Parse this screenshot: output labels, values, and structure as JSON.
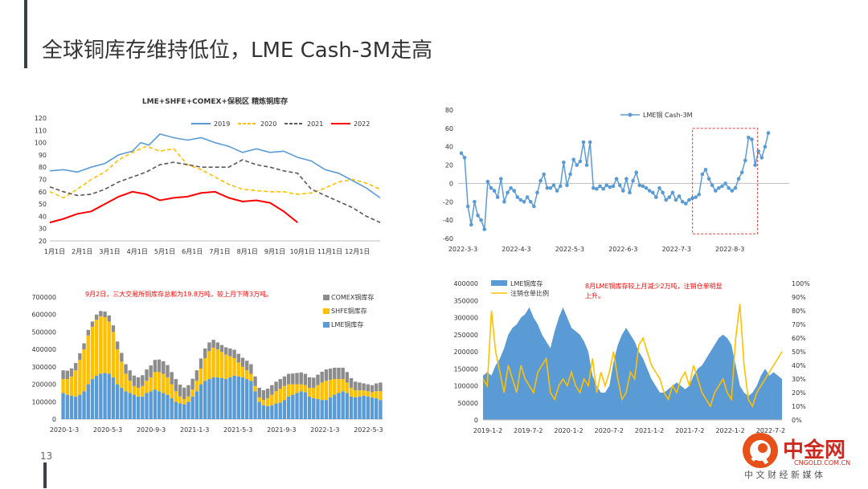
{
  "page": {
    "title": "全球铜库存维持低位，LME Cash-3M走高",
    "page_number": "13"
  },
  "watermark": {
    "name": "中金网",
    "url": "CNGOLD.COM.CN",
    "slogan": "中 文 财 经 新 媒 体"
  },
  "chart_data": [
    {
      "id": "c1",
      "type": "line",
      "title": "LME+SHFE+COMEX+保税区 精炼铜库存",
      "categories": [
        "1月1日",
        "2月1日",
        "3月1日",
        "4月1日",
        "5月1日",
        "6月1日",
        "7月1日",
        "8月1日",
        "9月1日",
        "10月1日",
        "11月1日",
        "12月1日"
      ],
      "ylim": [
        20,
        120
      ],
      "yticks": [
        20,
        30,
        40,
        50,
        60,
        70,
        80,
        90,
        100,
        110,
        120
      ],
      "legend_position": "top",
      "series": [
        {
          "name": "2019",
          "color": "#5b9bd5",
          "style": "solid",
          "x": [
            0,
            0.5,
            1,
            1.5,
            2,
            2.5,
            3,
            3.3,
            3.6,
            4,
            4.5,
            5,
            5.5,
            6,
            6.5,
            7,
            7.5,
            8,
            8.5,
            9,
            9.5,
            10,
            10.5,
            11,
            11.5,
            12
          ],
          "values": [
            77,
            78,
            76,
            80,
            83,
            90,
            93,
            100,
            98,
            107,
            104,
            102,
            104,
            100,
            97,
            92,
            95,
            92,
            93,
            88,
            85,
            78,
            75,
            69,
            63,
            55
          ]
        },
        {
          "name": "2020",
          "color": "#ffc000",
          "style": "dash",
          "x": [
            0,
            0.5,
            1,
            1.5,
            2,
            2.5,
            3,
            3.5,
            4,
            4.5,
            5,
            5.5,
            6,
            6.5,
            7,
            7.5,
            8,
            8.5,
            9,
            9.5,
            10,
            10.5,
            11,
            11.5,
            12
          ],
          "values": [
            60,
            55,
            62,
            70,
            76,
            86,
            92,
            97,
            93,
            95,
            82,
            78,
            72,
            66,
            62,
            61,
            60,
            60,
            58,
            59,
            63,
            68,
            70,
            67,
            62
          ]
        },
        {
          "name": "2021",
          "color": "#595959",
          "style": "dash",
          "x": [
            0,
            0.5,
            1,
            1.5,
            2,
            2.5,
            3,
            3.5,
            4,
            4.5,
            5,
            5.5,
            6,
            6.5,
            7,
            7.5,
            8,
            8.5,
            9,
            9.5,
            10,
            10.5,
            11,
            11.5,
            12
          ],
          "values": [
            64,
            60,
            57,
            58,
            62,
            68,
            72,
            76,
            82,
            84,
            82,
            80,
            80,
            80,
            86,
            82,
            80,
            77,
            75,
            62,
            57,
            52,
            47,
            40,
            35
          ]
        },
        {
          "name": "2022",
          "color": "#ff0000",
          "style": "solid",
          "x": [
            0,
            0.5,
            1,
            1.5,
            2,
            2.5,
            3,
            3.5,
            4,
            4.5,
            5,
            5.5,
            6,
            6.5,
            7,
            7.5,
            8,
            8.5,
            9
          ],
          "values": [
            35,
            38,
            42,
            44,
            50,
            56,
            60,
            58,
            53,
            55,
            56,
            59,
            60,
            55,
            52,
            53,
            51,
            44,
            35
          ]
        }
      ]
    },
    {
      "id": "c2",
      "type": "line",
      "x_ticks": [
        "2022-3-3",
        "2022-4-3",
        "2022-5-3",
        "2022-6-3",
        "2022-7-3",
        "2022-8-3"
      ],
      "ylim": [
        -60,
        80
      ],
      "yticks": [
        -60,
        -40,
        -20,
        0,
        20,
        40,
        60,
        80
      ],
      "series": [
        {
          "name": "LME铜 Cash-3M",
          "color": "#5b9bd5",
          "values": [
            33,
            28,
            -25,
            -45,
            -20,
            -35,
            -40,
            -50,
            2,
            -5,
            -8,
            -15,
            5,
            -20,
            -10,
            -5,
            -8,
            -15,
            -18,
            -20,
            -15,
            -20,
            -25,
            -10,
            3,
            10,
            -5,
            -5,
            -2,
            -8,
            -3,
            23,
            -2,
            10,
            26,
            20,
            24,
            45,
            20,
            45,
            -5,
            -6,
            -3,
            -6,
            -2,
            -4,
            -3,
            5,
            -2,
            -8,
            5,
            -10,
            3,
            12,
            -2,
            -3,
            -5,
            -8,
            -10,
            -15,
            -5,
            -10,
            -18,
            -15,
            -10,
            -18,
            -14,
            -20,
            -22,
            -18,
            -16,
            -15,
            -12,
            10,
            15,
            5,
            -2,
            -8,
            -5,
            -3,
            0,
            -5,
            -8,
            -5,
            5,
            12,
            25,
            50,
            48,
            20,
            35,
            28,
            40,
            55
          ]
        }
      ],
      "annotation": "dashed red box highlighting Aug-Sep 2022"
    },
    {
      "id": "c3",
      "type": "bar",
      "stacked": true,
      "annotation_text": "9月2日，三大交易所铜库存总和为19.8万吨，较上月下降3万吨。",
      "x_ticks": [
        "2020-1-3",
        "2020-5-3",
        "2020-9-3",
        "2021-1-3",
        "2021-5-3",
        "2021-9-3",
        "2022-1-3",
        "2022-5-3"
      ],
      "ylim": [
        0,
        700000
      ],
      "yticks": [
        0,
        100000,
        200000,
        300000,
        400000,
        500000,
        600000,
        700000
      ],
      "series": [
        {
          "name": "COMEX铜库存",
          "color": "#8c8c8c",
          "values": [
            50000,
            48000,
            46000,
            42000,
            38000,
            35000,
            32000,
            30000,
            30000,
            30000,
            32000,
            35000,
            38000,
            45000,
            50000,
            55000,
            60000,
            60000,
            60000,
            62000,
            65000,
            68000,
            70000,
            72000,
            72000,
            70000,
            70000,
            70000,
            68000,
            66000,
            65000,
            62000,
            60000,
            58000,
            55000,
            50000,
            45000,
            40000,
            40000,
            42000,
            45000,
            48000,
            50000,
            52000,
            55000,
            55000,
            55000,
            55000,
            56000,
            55000,
            55000,
            55000,
            55000,
            55000,
            60000,
            62000,
            65000,
            68000,
            65000,
            60000,
            58000,
            60000,
            62000,
            65000,
            65000,
            65000,
            65000,
            65000,
            60000,
            55000,
            50000,
            45000,
            40000,
            40000,
            40000,
            45000,
            50000
          ]
        },
        {
          "name": "SHFE铜库存",
          "color": "#ffc000",
          "values": [
            80000,
            90000,
            110000,
            150000,
            200000,
            240000,
            280000,
            300000,
            320000,
            330000,
            320000,
            300000,
            260000,
            200000,
            150000,
            100000,
            70000,
            50000,
            50000,
            60000,
            70000,
            80000,
            100000,
            110000,
            110000,
            100000,
            80000,
            60000,
            40000,
            30000,
            30000,
            40000,
            60000,
            90000,
            130000,
            160000,
            170000,
            160000,
            150000,
            140000,
            120000,
            100000,
            80000,
            60000,
            50000,
            40000,
            30000,
            25000,
            30000,
            45000,
            60000,
            70000,
            80000,
            80000,
            70000,
            60000,
            50000,
            40000,
            40000,
            50000,
            60000,
            80000,
            100000,
            110000,
            100000,
            90000,
            80000,
            70000,
            60000,
            50000,
            40000,
            35000,
            30000,
            30000,
            30000,
            40000,
            50000
          ]
        },
        {
          "name": "LME铜库存",
          "color": "#5b9bd5",
          "values": [
            150000,
            140000,
            135000,
            130000,
            140000,
            160000,
            200000,
            230000,
            250000,
            260000,
            265000,
            260000,
            240000,
            200000,
            180000,
            160000,
            150000,
            140000,
            130000,
            130000,
            150000,
            160000,
            170000,
            160000,
            150000,
            140000,
            120000,
            100000,
            90000,
            85000,
            100000,
            130000,
            160000,
            200000,
            220000,
            230000,
            240000,
            240000,
            235000,
            230000,
            240000,
            250000,
            245000,
            240000,
            230000,
            220000,
            160000,
            100000,
            80000,
            75000,
            80000,
            90000,
            95000,
            110000,
            130000,
            140000,
            150000,
            160000,
            155000,
            130000,
            120000,
            115000,
            110000,
            110000,
            125000,
            140000,
            150000,
            160000,
            150000,
            130000,
            125000,
            130000,
            135000,
            130000,
            125000,
            120000,
            110000
          ]
        }
      ]
    },
    {
      "id": "c4",
      "type": "area",
      "annotation_text": "8月LME铜库存较上月减少2万吨，注销仓单明显上升。",
      "x_ticks": [
        "2019-1-2",
        "2019-7-2",
        "2020-1-2",
        "2020-7-2",
        "2021-1-2",
        "2021-7-2",
        "2022-1-2",
        "2022-7-2"
      ],
      "ylim_left": [
        0,
        400000
      ],
      "yticks_left": [
        0,
        50000,
        100000,
        150000,
        200000,
        250000,
        300000,
        350000,
        400000
      ],
      "ylim_right": [
        0,
        100
      ],
      "yticks_right": [
        "0%",
        "10%",
        "20%",
        "30%",
        "40%",
        "50%",
        "60%",
        "70%",
        "80%",
        "90%",
        "100%"
      ],
      "series": [
        {
          "name": "LME铜库存",
          "color": "#5b9bd5",
          "axis": "left",
          "values": [
            130000,
            140000,
            130000,
            160000,
            180000,
            210000,
            250000,
            270000,
            280000,
            300000,
            310000,
            330000,
            300000,
            280000,
            250000,
            230000,
            210000,
            260000,
            300000,
            330000,
            300000,
            270000,
            260000,
            250000,
            230000,
            200000,
            130000,
            100000,
            80000,
            80000,
            100000,
            170000,
            220000,
            250000,
            270000,
            250000,
            230000,
            200000,
            180000,
            150000,
            120000,
            100000,
            80000,
            80000,
            90000,
            100000,
            110000,
            100000,
            90000,
            100000,
            130000,
            150000,
            160000,
            180000,
            200000,
            220000,
            240000,
            250000,
            240000,
            220000,
            160000,
            100000,
            80000,
            70000,
            80000,
            100000,
            130000,
            150000,
            130000,
            140000,
            130000,
            120000
          ]
        },
        {
          "name": "注销仓单比例",
          "color": "#ffc000",
          "axis": "right",
          "values": [
            30,
            25,
            80,
            50,
            35,
            20,
            40,
            30,
            20,
            40,
            30,
            25,
            20,
            35,
            40,
            45,
            20,
            15,
            25,
            30,
            25,
            35,
            25,
            20,
            30,
            25,
            45,
            20,
            35,
            25,
            35,
            50,
            30,
            15,
            20,
            35,
            30,
            55,
            60,
            50,
            40,
            35,
            30,
            20,
            15,
            25,
            20,
            30,
            35,
            25,
            40,
            30,
            20,
            15,
            10,
            20,
            25,
            30,
            20,
            15,
            60,
            85,
            40,
            15,
            10,
            20,
            25,
            30,
            35,
            40,
            45,
            50
          ]
        }
      ]
    }
  ]
}
